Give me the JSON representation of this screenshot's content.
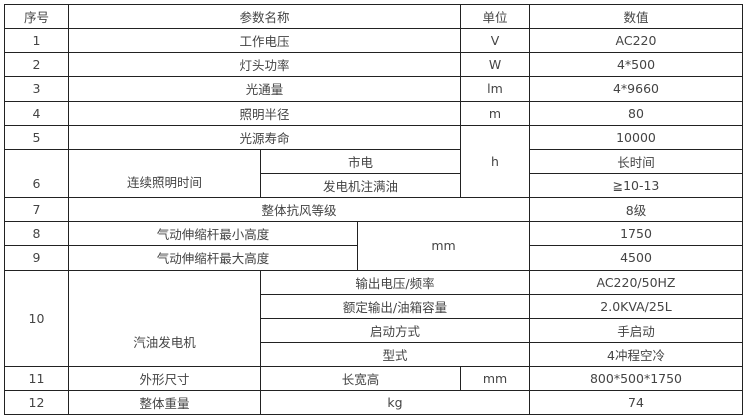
{
  "header": {
    "no": "序号",
    "param": "参数名称",
    "unit": "单位",
    "value": "数值"
  },
  "rows": {
    "r1": {
      "no": "1",
      "param": "工作电压",
      "unit": "V",
      "value": "AC220"
    },
    "r2": {
      "no": "2",
      "param": "灯头功率",
      "unit": "W",
      "value": "4*500"
    },
    "r3": {
      "no": "3",
      "param": "光通量",
      "unit": "lm",
      "value": "4*9660"
    },
    "r4": {
      "no": "4",
      "param": "照明半径",
      "unit": "m",
      "value": "80"
    },
    "r5": {
      "no": "5",
      "param": "光源寿命",
      "unit": "h",
      "value": "10000"
    },
    "r6": {
      "no": "6",
      "param": "连续照明时间",
      "sub1": "市电",
      "value1": "长时间",
      "sub2": "发电机注满油",
      "value2": "≧10-13"
    },
    "r7": {
      "no": "7",
      "param": "整体抗风等级",
      "value": "8级"
    },
    "r8": {
      "no": "8",
      "param": "气动伸缩杆最小高度",
      "unit": "mm",
      "value": "1750"
    },
    "r9": {
      "no": "9",
      "param": "气动伸缩杆最大高度",
      "value": "4500"
    },
    "r10": {
      "no": "10",
      "param": "汽油发电机",
      "subs": [
        {
          "label": "输出电压/频率",
          "value": "AC220/50HZ"
        },
        {
          "label": "额定输出/油箱容量",
          "value": "2.0KVA/25L"
        },
        {
          "label": "启动方式",
          "value": "手启动"
        },
        {
          "label": "型式",
          "value": "4冲程空冷"
        }
      ]
    },
    "r11": {
      "no": "11",
      "param": "外形尺寸",
      "sub": "长宽高",
      "unit": "mm",
      "value": "800*500*1750"
    },
    "r12": {
      "no": "12",
      "param": "整体重量",
      "unit": "kg",
      "value": "74"
    }
  }
}
